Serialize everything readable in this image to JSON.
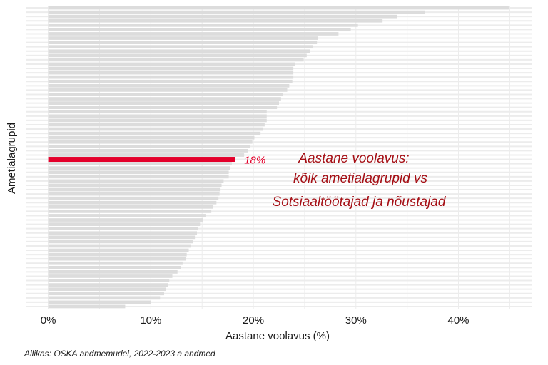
{
  "chart_data": {
    "type": "bar",
    "orientation": "horizontal",
    "xlabel": "Aastane voolavus (%)",
    "ylabel": "Ametialagrupid",
    "xlim": [
      -2.2,
      47.2
    ],
    "xticks": [
      0,
      10,
      20,
      30,
      40
    ],
    "xtick_labels": [
      "0%",
      "10%",
      "20%",
      "30%",
      "40%"
    ],
    "grid": true,
    "highlight": {
      "category": "Sotsiaaltöötajad ja nõustajad",
      "value": 18.2,
      "label": "18%",
      "rank": 35
    },
    "values": [
      44.9,
      36.7,
      34.0,
      32.6,
      30.2,
      29.5,
      28.3,
      26.3,
      26.2,
      25.8,
      25.5,
      25.2,
      24.9,
      24.1,
      23.9,
      23.9,
      23.9,
      23.8,
      23.5,
      23.3,
      22.9,
      22.7,
      22.5,
      22.3,
      21.3,
      21.3,
      21.3,
      21.1,
      20.9,
      20.7,
      20.1,
      19.9,
      19.7,
      19.5,
      19.1,
      18.2,
      17.9,
      17.7,
      17.6,
      17.6,
      17.1,
      16.9,
      16.8,
      16.7,
      16.6,
      16.4,
      16.1,
      15.9,
      15.4,
      15.1,
      14.8,
      14.6,
      14.5,
      14.3,
      14.1,
      13.9,
      13.7,
      13.5,
      13.4,
      13.1,
      12.9,
      12.6,
      12.1,
      11.8,
      11.7,
      11.5,
      11.3,
      10.9,
      10.0,
      7.5
    ]
  },
  "annotation": {
    "lines": [
      "Aastane voolavus:",
      "kõik ametialagrupid vs",
      "Sotsiaaltöötajad ja nõustajad"
    ],
    "color": "#a50f15"
  },
  "colors": {
    "bars": "#dcdcdc",
    "highlight": "#e4002b",
    "grid": "#ececec"
  },
  "caption": "Allikas: OSKA andmemudel, 2022-2023 a andmed"
}
